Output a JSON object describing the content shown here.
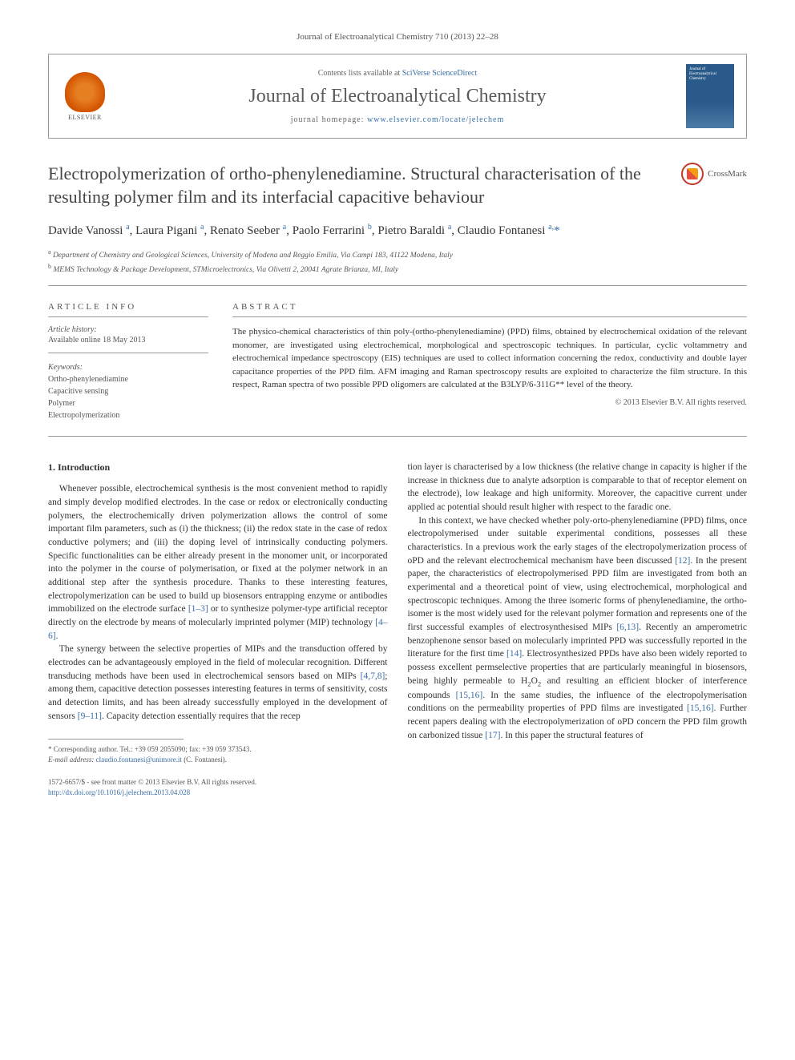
{
  "journal_ref": "Journal of Electroanalytical Chemistry 710 (2013) 22–28",
  "header": {
    "contents_prefix": "Contents lists available at ",
    "contents_link": "SciVerse ScienceDirect",
    "journal_name": "Journal of Electroanalytical Chemistry",
    "homepage_prefix": "journal homepage: ",
    "homepage_url": "www.elsevier.com/locate/jelechem",
    "elsevier_label": "ELSEVIER",
    "cover_text": "Journal of Electroanalytical Chemistry"
  },
  "title": "Electropolymerization of ortho-phenylenediamine. Structural characterisation of the resulting polymer film and its interfacial capacitive behaviour",
  "crossmark_label": "CrossMark",
  "authors_html": "Davide Vanossi <sup>a</sup>, Laura Pigani <sup>a</sup>, Renato Seeber <sup>a</sup>, Paolo Ferrarini <sup>b</sup>, Pietro Baraldi <sup>a</sup>, Claudio Fontanesi <sup>a,</sup><a>*</a>",
  "affiliations": [
    {
      "sup": "a",
      "text": "Department of Chemistry and Geological Sciences, University of Modena and Reggio Emilia, Via Campi 183, 41122 Modena, Italy"
    },
    {
      "sup": "b",
      "text": "MEMS Technology & Package Development, STMicroelectronics, Via Olivetti 2, 20041 Agrate Brianza, MI, Italy"
    }
  ],
  "article_info": {
    "heading": "ARTICLE INFO",
    "history_label": "Article history:",
    "history_text": "Available online 18 May 2013",
    "keywords_label": "Keywords:",
    "keywords": [
      "Ortho-phenylenediamine",
      "Capacitive sensing",
      "Polymer",
      "Electropolymerization"
    ]
  },
  "abstract": {
    "heading": "ABSTRACT",
    "text": "The physico-chemical characteristics of thin poly-(ortho-phenylenediamine) (PPD) films, obtained by electrochemical oxidation of the relevant monomer, are investigated using electrochemical, morphological and spectroscopic techniques. In particular, cyclic voltammetry and electrochemical impedance spectroscopy (EIS) techniques are used to collect information concerning the redox, conductivity and double layer capacitance properties of the PPD film. AFM imaging and Raman spectroscopy results are exploited to characterize the film structure. In this respect, Raman spectra of two possible PPD oligomers are calculated at the B3LYP/6-311G** level of the theory.",
    "copyright": "© 2013 Elsevier B.V. All rights reserved."
  },
  "section1_heading": "1. Introduction",
  "col1_p1": "Whenever possible, electrochemical synthesis is the most convenient method to rapidly and simply develop modified electrodes. In the case or redox or electronically conducting polymers, the electrochemically driven polymerization allows the control of some important film parameters, such as (i) the thickness; (ii) the redox state in the case of redox conductive polymers; and (iii) the doping level of intrinsically conducting polymers. Specific functionalities can be either already present in the monomer unit, or incorporated into the polymer in the course of polymerisation, or fixed at the polymer network in an additional step after the synthesis procedure. Thanks to these interesting features, electropolymerization can be used to build up biosensors entrapping enzyme or antibodies immobilized on the electrode surface <a>[1–3]</a> or to synthesize polymer-type artificial receptor directly on the electrode by means of molecularly imprinted polymer (MIP) technology <a>[4–6]</a>.",
  "col1_p2": "The synergy between the selective properties of MIPs and the transduction offered by electrodes can be advantageously employed in the field of molecular recognition. Different transducing methods have been used in electrochemical sensors based on MIPs <a>[4,7,8]</a>; among them, capacitive detection possesses interesting features in terms of sensitivity, costs and detection limits, and has been already successfully employed in the development of sensors <a>[9–11]</a>. Capacity detection essentially requires that the recep",
  "col2_p1_noindent": "tion layer is characterised by a low thickness (the relative change in capacity is higher if the increase in thickness due to analyte adsorption is comparable to that of receptor element on the electrode), low leakage and high uniformity. Moreover, the capacitive current under applied ac potential should result higher with respect to the faradic one.",
  "col2_p2": "In this context, we have checked whether poly-orto-phenylenediamine (PPD) films, once electropolymerised under suitable experimental conditions, possesses all these characteristics. In a previous work the early stages of the electropolymerization process of oPD and the relevant electrochemical mechanism have been discussed <a>[12]</a>. In the present paper, the characteristics of electropolymerised PPD film are investigated from both an experimental and a theoretical point of view, using electrochemical, morphological and spectroscopic techniques. Among the three isomeric forms of phenylenediamine, the ortho-isomer is the most widely used for the relevant polymer formation and represents one of the first successful examples of electrosynthesised MIPs <a>[6,13]</a>. Recently an amperometric benzophenone sensor based on molecularly imprinted PPD was successfully reported in the literature for the first time <a>[14]</a>. Electrosynthesized PPDs have also been widely reported to possess excellent permselective properties that are particularly meaningful in biosensors, being highly permeable to H<sub>2</sub>O<sub>2</sub> and resulting an efficient blocker of interference compounds <a>[15,16]</a>. In the same studies, the influence of the electropolymerisation conditions on the permeability properties of PPD films are investigated <a>[15,16]</a>. Further recent papers dealing with the electropolymerization of oPD concern the PPD film growth on carbonized tissue <a>[17]</a>. In this paper the structural features of",
  "footnote": {
    "corr": "* Corresponding author. Tel.: +39 059 2055090; fax: +39 059 373543.",
    "email_label": "E-mail address:",
    "email": "claudio.fontanesi@unimore.it",
    "email_name": "(C. Fontanesi)."
  },
  "footer": {
    "issn": "1572-6657/$ - see front matter © 2013 Elsevier B.V. All rights reserved.",
    "doi": "http://dx.doi.org/10.1016/j.jelechem.2013.04.028"
  },
  "colors": {
    "link": "#3a6ea5",
    "text": "#333333",
    "muted": "#555555",
    "border": "#999999",
    "elsevier_orange": "#e67e22",
    "cover_blue": "#2a5a8a"
  }
}
